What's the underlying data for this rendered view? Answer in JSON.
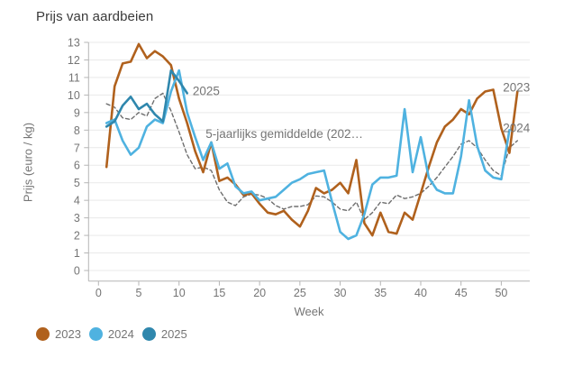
{
  "title": "Prijs van aardbeien",
  "chart_data": {
    "type": "line",
    "title": "Prijs van aardbeien",
    "xlabel": "Week",
    "ylabel": "Prijs (euro / kg)",
    "xlim": [
      0,
      52.7
    ],
    "ylim": [
      0,
      13
    ],
    "xticks": [
      0,
      5,
      10,
      15,
      20,
      25,
      30,
      35,
      40,
      45,
      50
    ],
    "yticks": [
      0,
      1,
      2,
      3,
      4,
      5,
      6,
      7,
      8,
      9,
      10,
      11,
      12,
      13
    ],
    "grid": "horizontal",
    "x_unit": "week",
    "series": [
      {
        "name": "5-jaarlijks gemiddelde (202…",
        "color": "#6e6e6e",
        "dash": "4 3",
        "width": 1.4,
        "start_week": 1,
        "in_legend": false,
        "values": [
          9.5,
          9.3,
          8.7,
          8.6,
          9.0,
          8.8,
          9.8,
          10.1,
          9.1,
          7.9,
          6.6,
          5.8,
          5.9,
          5.7,
          4.6,
          3.9,
          3.7,
          4.2,
          4.35,
          4.3,
          4.1,
          3.7,
          3.5,
          3.65,
          3.65,
          3.75,
          4.25,
          4.2,
          3.9,
          3.5,
          3.4,
          3.9,
          2.9,
          3.3,
          3.9,
          3.8,
          4.3,
          4.1,
          4.2,
          4.4,
          4.8,
          5.3,
          5.9,
          6.5,
          7.2,
          7.4,
          7.0,
          6.3,
          5.7,
          5.4,
          7.0,
          7.4
        ]
      },
      {
        "name": "2023",
        "color": "#b0611d",
        "dash": null,
        "width": 2.6,
        "start_week": 1,
        "in_legend": true,
        "values": [
          5.9,
          10.5,
          11.8,
          11.9,
          12.9,
          12.1,
          12.5,
          12.2,
          11.7,
          9.8,
          8.4,
          6.8,
          5.6,
          7.3,
          5.1,
          5.3,
          4.9,
          4.3,
          4.4,
          3.8,
          3.3,
          3.2,
          3.4,
          2.9,
          2.5,
          3.4,
          4.7,
          4.4,
          4.6,
          5.0,
          4.4,
          6.3,
          2.7,
          2.0,
          3.3,
          2.2,
          2.1,
          3.3,
          2.9,
          4.4,
          5.9,
          7.3,
          8.2,
          8.6,
          9.2,
          8.9,
          9.8,
          10.2,
          10.3,
          8.1,
          6.7,
          10.2
        ]
      },
      {
        "name": "2024",
        "color": "#4fb2e0",
        "dash": null,
        "width": 2.6,
        "start_week": 1,
        "in_legend": true,
        "values": [
          8.4,
          8.6,
          7.4,
          6.6,
          7.0,
          8.2,
          8.6,
          8.4,
          10.2,
          11.4,
          9.0,
          7.6,
          6.3,
          7.3,
          5.8,
          6.1,
          4.8,
          4.4,
          4.5,
          4.0,
          4.1,
          4.2,
          4.6,
          5.0,
          5.2,
          5.5,
          5.6,
          5.7,
          3.9,
          2.2,
          1.8,
          2.0,
          3.2,
          4.9,
          5.3,
          5.3,
          5.4,
          9.2,
          5.6,
          7.6,
          5.3,
          4.6,
          4.4,
          4.4,
          6.5,
          9.7,
          7.1,
          5.7,
          5.3,
          5.2,
          8.0
        ]
      },
      {
        "name": "2025",
        "color": "#2f87ad",
        "dash": null,
        "width": 2.6,
        "start_week": 1,
        "in_legend": true,
        "values": [
          8.2,
          8.5,
          9.4,
          9.9,
          9.2,
          9.5,
          8.9,
          8.5,
          11.4,
          10.8,
          10.1
        ]
      }
    ],
    "annotations": [
      {
        "text": "2025",
        "week": 11.7,
        "value": 10.0
      },
      {
        "text": "5-jaarlijks gemiddelde (202…",
        "week": 13.3,
        "value": 7.55
      },
      {
        "text": "2023",
        "week": 50.2,
        "value": 10.2
      },
      {
        "text": "2024",
        "week": 50.2,
        "value": 7.9
      }
    ],
    "legend": {
      "position": "bottom-left",
      "entries": [
        {
          "label": "2023",
          "color": "#b0611d"
        },
        {
          "label": "2024",
          "color": "#4fb2e0"
        },
        {
          "label": "2025",
          "color": "#2f87ad"
        }
      ]
    },
    "colors": {
      "grid": "#e9e9e9",
      "axis": "#b5b5b5",
      "tick_label": "#757575",
      "annotation": "#757575",
      "title": "#3a3a3a"
    }
  }
}
